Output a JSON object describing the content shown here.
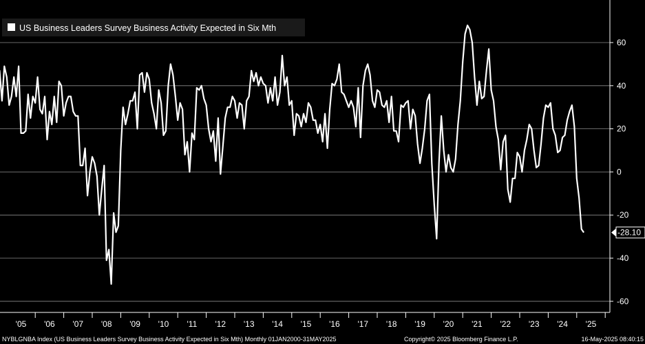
{
  "chart_data": {
    "type": "line",
    "title": "",
    "xlabel": "",
    "ylabel": "",
    "legend": {
      "position": "top-left",
      "entries": [
        "US Business Leaders Survey Business Activity Expected in Six Mth"
      ]
    },
    "ylim": [
      -60,
      70
    ],
    "y_ticks": [
      -60,
      -40,
      -20,
      0,
      20,
      40,
      60
    ],
    "y_tick_labels": [
      "-60",
      "-40",
      "-20",
      "0",
      "20",
      "40",
      "60"
    ],
    "x_tick_labels": [
      "'05",
      "'06",
      "'07",
      "'08",
      "'09",
      "'10",
      "'11",
      "'12",
      "'13",
      "'14",
      "'15",
      "'16",
      "'17",
      "'18",
      "'19",
      "'20",
      "'21",
      "'22",
      "'23",
      "'24",
      "'25"
    ],
    "grid": "horizontal",
    "last_value_label": "-28.10",
    "series": [
      {
        "name": "US Business Leaders Survey Business Activity Expected in Six Mth",
        "color": "#ffffff",
        "points": [
          [
            "2004-08",
            50
          ],
          [
            "2004-09",
            37
          ],
          [
            "2004-10",
            47
          ],
          [
            "2004-11",
            33
          ],
          [
            "2004-12",
            49
          ],
          [
            "2005-01",
            44
          ],
          [
            "2005-02",
            31
          ],
          [
            "2005-03",
            35
          ],
          [
            "2005-04",
            44
          ],
          [
            "2005-05",
            35
          ],
          [
            "2005-06",
            49
          ],
          [
            "2005-07",
            18
          ],
          [
            "2005-08",
            18
          ],
          [
            "2005-09",
            19
          ],
          [
            "2005-10",
            36
          ],
          [
            "2005-11",
            25
          ],
          [
            "2005-12",
            35
          ],
          [
            "2006-01",
            32
          ],
          [
            "2006-02",
            44
          ],
          [
            "2006-03",
            29
          ],
          [
            "2006-04",
            27
          ],
          [
            "2006-05",
            35
          ],
          [
            "2006-06",
            15
          ],
          [
            "2006-07",
            28
          ],
          [
            "2006-08",
            22
          ],
          [
            "2006-09",
            35
          ],
          [
            "2006-10",
            23
          ],
          [
            "2006-11",
            42
          ],
          [
            "2006-12",
            40
          ],
          [
            "2007-01",
            26
          ],
          [
            "2007-02",
            32
          ],
          [
            "2007-03",
            35
          ],
          [
            "2007-04",
            35
          ],
          [
            "2007-05",
            28
          ],
          [
            "2007-06",
            26
          ],
          [
            "2007-07",
            26
          ],
          [
            "2007-08",
            3
          ],
          [
            "2007-09",
            3
          ],
          [
            "2007-10",
            11
          ],
          [
            "2007-11",
            -11
          ],
          [
            "2007-12",
            0
          ],
          [
            "2008-01",
            7
          ],
          [
            "2008-02",
            4
          ],
          [
            "2008-03",
            -2
          ],
          [
            "2008-04",
            -20
          ],
          [
            "2008-05",
            -8
          ],
          [
            "2008-06",
            3
          ],
          [
            "2008-07",
            -41
          ],
          [
            "2008-08",
            -36
          ],
          [
            "2008-09",
            -52
          ],
          [
            "2008-10",
            -19
          ],
          [
            "2008-11",
            -28
          ],
          [
            "2008-12",
            -25
          ],
          [
            "2009-01",
            10
          ],
          [
            "2009-02",
            30
          ],
          [
            "2009-03",
            22
          ],
          [
            "2009-04",
            27
          ],
          [
            "2009-05",
            33
          ],
          [
            "2009-06",
            33
          ],
          [
            "2009-07",
            37
          ],
          [
            "2009-08",
            20
          ],
          [
            "2009-09",
            45
          ],
          [
            "2009-10",
            46
          ],
          [
            "2009-11",
            37
          ],
          [
            "2009-12",
            46
          ],
          [
            "2010-01",
            43
          ],
          [
            "2010-02",
            32
          ],
          [
            "2010-03",
            27
          ],
          [
            "2010-04",
            20
          ],
          [
            "2010-05",
            38
          ],
          [
            "2010-06",
            32
          ],
          [
            "2010-07",
            17
          ],
          [
            "2010-08",
            19
          ],
          [
            "2010-09",
            40
          ],
          [
            "2010-10",
            50
          ],
          [
            "2010-11",
            45
          ],
          [
            "2010-12",
            35
          ],
          [
            "2011-01",
            24
          ],
          [
            "2011-02",
            32
          ],
          [
            "2011-03",
            29
          ],
          [
            "2011-04",
            8
          ],
          [
            "2011-05",
            14
          ],
          [
            "2011-06",
            0
          ],
          [
            "2011-07",
            18
          ],
          [
            "2011-08",
            15
          ],
          [
            "2011-09",
            39
          ],
          [
            "2011-10",
            38
          ],
          [
            "2011-11",
            40
          ],
          [
            "2011-12",
            34
          ],
          [
            "2012-01",
            31
          ],
          [
            "2012-02",
            20
          ],
          [
            "2012-03",
            14
          ],
          [
            "2012-04",
            19
          ],
          [
            "2012-05",
            5
          ],
          [
            "2012-06",
            25
          ],
          [
            "2012-07",
            -1
          ],
          [
            "2012-08",
            12
          ],
          [
            "2012-09",
            25
          ],
          [
            "2012-10",
            30
          ],
          [
            "2012-11",
            30
          ],
          [
            "2012-12",
            35
          ],
          [
            "2013-01",
            33
          ],
          [
            "2013-02",
            25
          ],
          [
            "2013-03",
            32
          ],
          [
            "2013-04",
            31
          ],
          [
            "2013-05",
            20
          ],
          [
            "2013-06",
            33
          ],
          [
            "2013-07",
            35
          ],
          [
            "2013-08",
            47
          ],
          [
            "2013-09",
            42
          ],
          [
            "2013-10",
            46
          ],
          [
            "2013-11",
            40
          ],
          [
            "2013-12",
            44
          ],
          [
            "2014-01",
            41
          ],
          [
            "2014-02",
            40
          ],
          [
            "2014-03",
            32
          ],
          [
            "2014-04",
            39
          ],
          [
            "2014-05",
            33
          ],
          [
            "2014-06",
            44
          ],
          [
            "2014-07",
            31
          ],
          [
            "2014-08",
            37
          ],
          [
            "2014-09",
            54
          ],
          [
            "2014-10",
            40
          ],
          [
            "2014-11",
            44
          ],
          [
            "2014-12",
            31
          ],
          [
            "2015-01",
            33
          ],
          [
            "2015-02",
            17
          ],
          [
            "2015-03",
            27
          ],
          [
            "2015-04",
            26
          ],
          [
            "2015-05",
            21
          ],
          [
            "2015-06",
            27
          ],
          [
            "2015-07",
            23
          ],
          [
            "2015-08",
            32
          ],
          [
            "2015-09",
            30
          ],
          [
            "2015-10",
            24
          ],
          [
            "2015-11",
            24
          ],
          [
            "2015-12",
            18
          ],
          [
            "2016-01",
            22
          ],
          [
            "2016-02",
            14
          ],
          [
            "2016-03",
            27
          ],
          [
            "2016-04",
            11
          ],
          [
            "2016-05",
            29
          ],
          [
            "2016-06",
            41
          ],
          [
            "2016-07",
            40
          ],
          [
            "2016-08",
            43
          ],
          [
            "2016-09",
            50
          ],
          [
            "2016-10",
            37
          ],
          [
            "2016-11",
            36
          ],
          [
            "2016-12",
            33
          ],
          [
            "2017-01",
            30
          ],
          [
            "2017-02",
            33
          ],
          [
            "2017-03",
            30
          ],
          [
            "2017-04",
            21
          ],
          [
            "2017-05",
            39
          ],
          [
            "2017-06",
            16
          ],
          [
            "2017-07",
            40
          ],
          [
            "2017-08",
            47
          ],
          [
            "2017-09",
            50
          ],
          [
            "2017-10",
            45
          ],
          [
            "2017-11",
            33
          ],
          [
            "2017-12",
            30
          ],
          [
            "2018-01",
            38
          ],
          [
            "2018-02",
            37
          ],
          [
            "2018-03",
            31
          ],
          [
            "2018-04",
            30
          ],
          [
            "2018-05",
            33
          ],
          [
            "2018-06",
            23
          ],
          [
            "2018-07",
            35
          ],
          [
            "2018-08",
            19
          ],
          [
            "2018-09",
            19
          ],
          [
            "2018-10",
            14
          ],
          [
            "2018-11",
            31
          ],
          [
            "2018-12",
            30
          ],
          [
            "2019-01",
            32
          ],
          [
            "2019-02",
            33
          ],
          [
            "2019-03",
            20
          ],
          [
            "2019-04",
            29
          ],
          [
            "2019-05",
            26
          ],
          [
            "2019-06",
            13
          ],
          [
            "2019-07",
            4
          ],
          [
            "2019-08",
            11
          ],
          [
            "2019-09",
            20
          ],
          [
            "2019-10",
            33
          ],
          [
            "2019-11",
            36
          ],
          [
            "2019-12",
            4
          ],
          [
            "2020-01",
            -15
          ],
          [
            "2020-02",
            -31
          ],
          [
            "2020-03",
            4
          ],
          [
            "2020-04",
            26
          ],
          [
            "2020-05",
            10
          ],
          [
            "2020-06",
            0
          ],
          [
            "2020-07",
            8
          ],
          [
            "2020-08",
            2
          ],
          [
            "2020-09",
            0
          ],
          [
            "2020-10",
            6
          ],
          [
            "2020-11",
            22
          ],
          [
            "2020-12",
            33
          ],
          [
            "2021-01",
            51
          ],
          [
            "2021-02",
            64
          ],
          [
            "2021-03",
            68
          ],
          [
            "2021-04",
            66
          ],
          [
            "2021-05",
            60
          ],
          [
            "2021-06",
            44
          ],
          [
            "2021-07",
            31
          ],
          [
            "2021-08",
            42
          ],
          [
            "2021-09",
            34
          ],
          [
            "2021-10",
            35
          ],
          [
            "2021-11",
            47
          ],
          [
            "2021-12",
            57
          ],
          [
            "2022-01",
            38
          ],
          [
            "2022-02",
            33
          ],
          [
            "2022-03",
            21
          ],
          [
            "2022-04",
            15
          ],
          [
            "2022-05",
            1
          ],
          [
            "2022-06",
            14
          ],
          [
            "2022-07",
            17
          ],
          [
            "2022-08",
            -8
          ],
          [
            "2022-09",
            -14
          ],
          [
            "2022-10",
            -3
          ],
          [
            "2022-11",
            -3
          ],
          [
            "2022-12",
            9
          ],
          [
            "2023-01",
            7
          ],
          [
            "2023-02",
            0
          ],
          [
            "2023-03",
            10
          ],
          [
            "2023-04",
            15
          ],
          [
            "2023-05",
            22
          ],
          [
            "2023-06",
            20
          ],
          [
            "2023-07",
            10
          ],
          [
            "2023-08",
            2
          ],
          [
            "2023-09",
            3
          ],
          [
            "2023-10",
            13
          ],
          [
            "2023-11",
            25
          ],
          [
            "2023-12",
            31
          ],
          [
            "2024-01",
            30
          ],
          [
            "2024-02",
            32
          ],
          [
            "2024-03",
            20
          ],
          [
            "2024-04",
            17
          ],
          [
            "2024-05",
            9
          ],
          [
            "2024-06",
            10
          ],
          [
            "2024-07",
            16
          ],
          [
            "2024-08",
            17
          ],
          [
            "2024-09",
            24
          ],
          [
            "2024-10",
            28
          ],
          [
            "2024-11",
            31
          ],
          [
            "2024-12",
            21
          ],
          [
            "2025-01",
            -3
          ],
          [
            "2025-02",
            -12
          ],
          [
            "2025-03",
            -26.5
          ],
          [
            "2025-04",
            -28.1
          ]
        ]
      }
    ]
  },
  "footer": {
    "left": "NYBLGNBA Index (US Business Leaders Survey Business Activity Expected in Six Mth)  Monthly 01JAN2000-31MAY2025",
    "center": "Copyright© 2025 Bloomberg Finance L.P.",
    "right": "16-May-2025 08:40:15"
  }
}
